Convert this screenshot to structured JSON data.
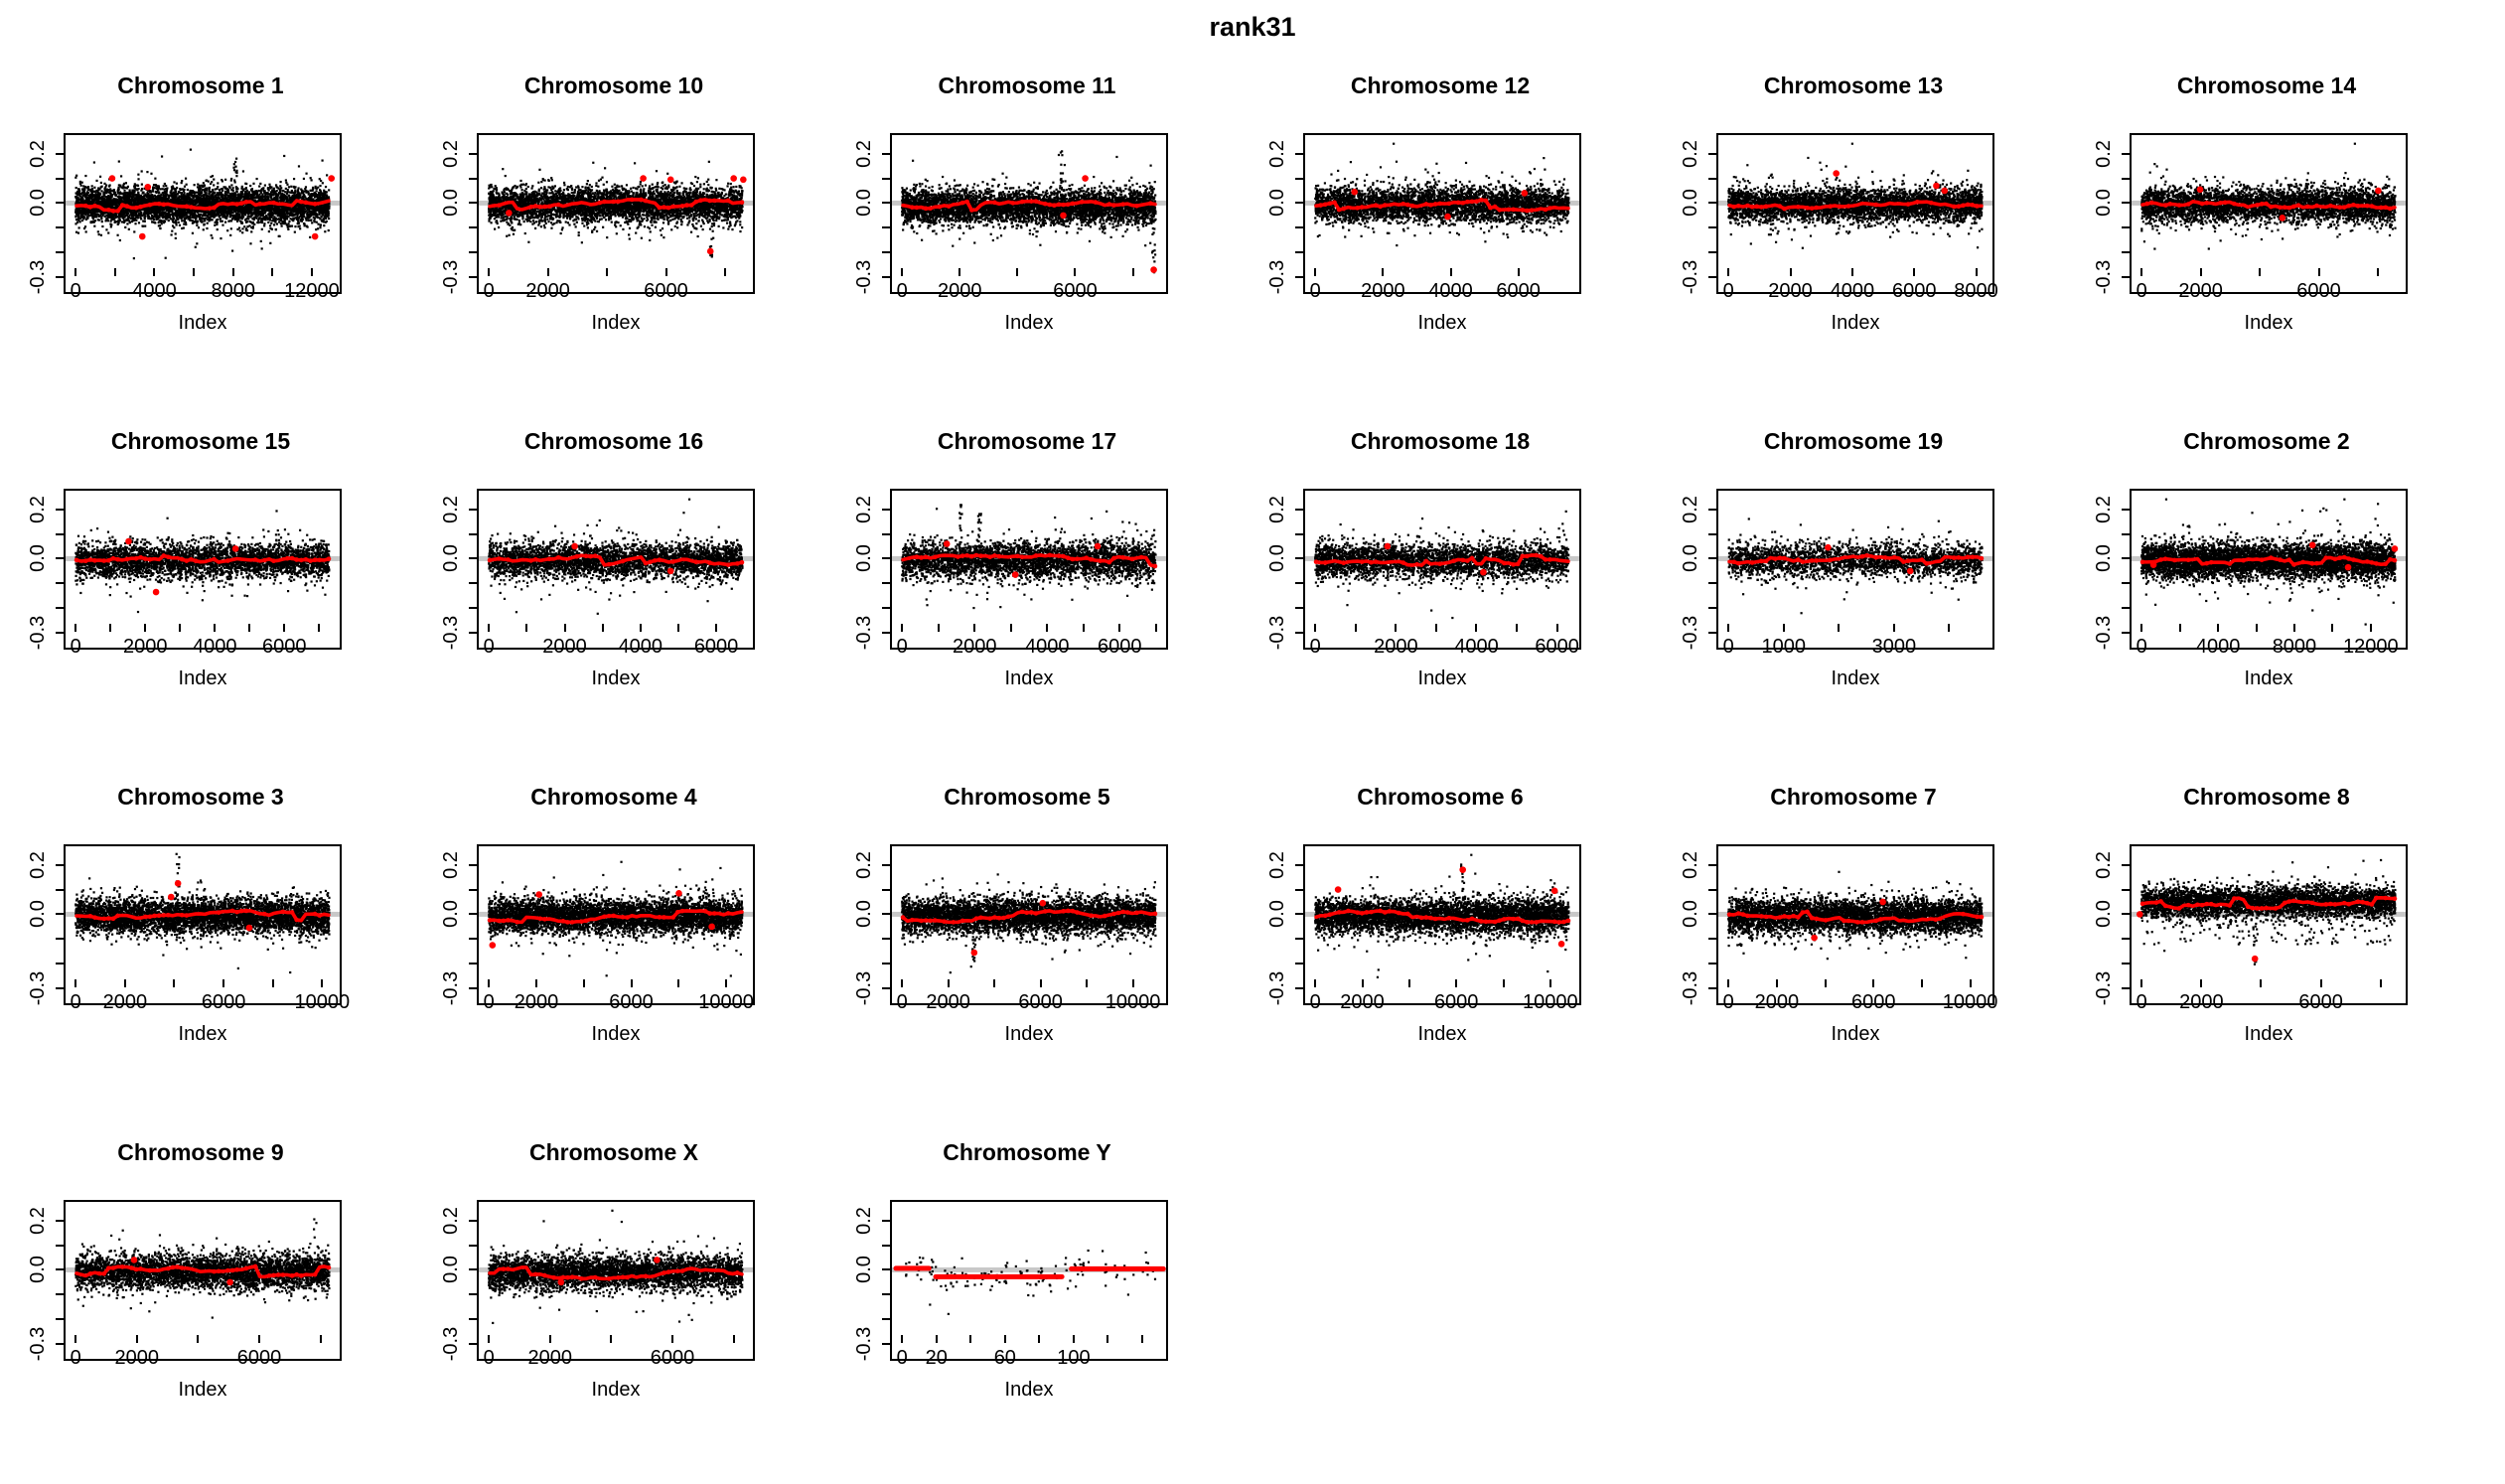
{
  "title": "rank31",
  "colors": {
    "point": "#000000",
    "smooth_line": "#FF0000",
    "zero_line": "#C8C8C8",
    "box": "#000000",
    "background": "#FFFFFF"
  },
  "chart_data": {
    "type": "scatter",
    "layout": {
      "rows": 4,
      "cols": 6,
      "legend": "none",
      "grid": "off"
    },
    "shared": {
      "xlabel": "Index",
      "y_ticks": [
        0.2,
        0.1,
        0.0,
        -0.1,
        -0.2,
        -0.3
      ],
      "y_labeled_ticks": {
        "0.2": "0.2",
        "0": "0.0",
        "-0.3": "-0.3"
      },
      "ylim": [
        -0.36,
        0.275
      ],
      "description": "Per-chromosome log-ratio scatter: dense black points around 0, gray reference line at y=0, thick red segmented smoothing line, sparse red outlier points."
    },
    "panels": [
      {
        "title": "Chromosome 1",
        "x_max": 12900,
        "x_tick_step": 2000,
        "x_labeled_ticks": [
          0,
          4000,
          8000,
          12000
        ],
        "n_points": 5600,
        "band_mean": -0.008,
        "band_sd": 0.034,
        "red_outliers": [
          [
            0.17,
            0.1
          ],
          [
            0.3,
            0.065
          ],
          [
            0.28,
            -0.135
          ],
          [
            0.91,
            -0.135
          ],
          [
            0.97,
            0.1
          ]
        ],
        "spikes": [
          [
            0.62,
            0.2
          ]
        ]
      },
      {
        "title": "Chromosome 10",
        "x_max": 8600,
        "x_tick_step": 2000,
        "x_labeled_ticks": [
          0,
          2000,
          6000
        ],
        "n_points": 4600,
        "band_mean": -0.008,
        "band_sd": 0.034,
        "red_outliers": [
          [
            0.11,
            -0.04
          ],
          [
            0.6,
            0.1
          ],
          [
            0.7,
            0.095
          ],
          [
            0.845,
            -0.195
          ],
          [
            0.93,
            0.1
          ],
          [
            0.965,
            0.095
          ]
        ],
        "spikes": [
          [
            0.85,
            -0.22
          ]
        ]
      },
      {
        "title": "Chromosome 11",
        "x_max": 8800,
        "x_tick_step": 2000,
        "x_labeled_ticks": [
          0,
          2000,
          6000
        ],
        "n_points": 4800,
        "band_mean": -0.015,
        "band_sd": 0.034,
        "red_outliers": [
          [
            0.705,
            0.1
          ],
          [
            0.625,
            -0.05
          ],
          [
            0.955,
            -0.27
          ]
        ],
        "spikes": [
          [
            0.62,
            0.21
          ],
          [
            0.955,
            -0.29
          ]
        ]
      },
      {
        "title": "Chromosome 12",
        "x_max": 7500,
        "x_tick_step": 2000,
        "x_labeled_ticks": [
          0,
          2000,
          4000,
          6000
        ],
        "n_points": 4200,
        "band_mean": -0.008,
        "band_sd": 0.034,
        "red_outliers": [
          [
            0.18,
            0.045
          ],
          [
            0.52,
            -0.055
          ],
          [
            0.8,
            0.04
          ]
        ],
        "spikes": []
      },
      {
        "title": "Chromosome 13",
        "x_max": 8200,
        "x_tick_step": 2000,
        "x_labeled_ticks": [
          0,
          2000,
          4000,
          6000,
          8000
        ],
        "n_points": 4400,
        "band_mean": -0.008,
        "band_sd": 0.034,
        "red_outliers": [
          [
            0.43,
            0.12
          ],
          [
            0.795,
            0.07
          ],
          [
            0.825,
            0.05
          ]
        ],
        "spikes": []
      },
      {
        "title": "Chromosome 14",
        "x_max": 8600,
        "x_tick_step": 2000,
        "x_labeled_ticks": [
          0,
          2000,
          6000
        ],
        "n_points": 4400,
        "band_mean": -0.008,
        "band_sd": 0.034,
        "red_outliers": [
          [
            0.25,
            0.055
          ],
          [
            0.55,
            -0.06
          ],
          [
            0.9,
            0.05
          ]
        ],
        "spikes": []
      },
      {
        "title": "Chromosome 15",
        "x_max": 7300,
        "x_tick_step": 1000,
        "x_labeled_ticks": [
          0,
          2000,
          4000,
          6000
        ],
        "n_points": 3800,
        "band_mean": -0.008,
        "band_sd": 0.034,
        "red_outliers": [
          [
            0.23,
            0.07
          ],
          [
            0.33,
            -0.135
          ],
          [
            0.62,
            0.04
          ]
        ],
        "spikes": []
      },
      {
        "title": "Chromosome 16",
        "x_max": 6700,
        "x_tick_step": 1000,
        "x_labeled_ticks": [
          0,
          2000,
          4000,
          6000
        ],
        "n_points": 3600,
        "band_mean": -0.008,
        "band_sd": 0.034,
        "red_outliers": [
          [
            0.35,
            0.05
          ],
          [
            0.7,
            -0.05
          ]
        ],
        "spikes": []
      },
      {
        "title": "Chromosome 17",
        "x_max": 7000,
        "x_tick_step": 1000,
        "x_labeled_ticks": [
          0,
          2000,
          4000,
          6000
        ],
        "n_points": 3700,
        "band_mean": -0.008,
        "band_sd": 0.036,
        "red_outliers": [
          [
            0.2,
            0.06
          ],
          [
            0.45,
            -0.065
          ],
          [
            0.75,
            0.05
          ]
        ],
        "spikes": [
          [
            0.25,
            0.22
          ],
          [
            0.32,
            0.2
          ]
        ]
      },
      {
        "title": "Chromosome 18",
        "x_max": 6300,
        "x_tick_step": 1000,
        "x_labeled_ticks": [
          0,
          2000,
          4000,
          6000
        ],
        "n_points": 3500,
        "band_mean": -0.008,
        "band_sd": 0.034,
        "red_outliers": [
          [
            0.3,
            0.05
          ],
          [
            0.65,
            -0.055
          ]
        ],
        "spikes": []
      },
      {
        "title": "Chromosome 19",
        "x_max": 4600,
        "x_tick_step": 1000,
        "x_labeled_ticks": [
          0,
          1000,
          3000
        ],
        "n_points": 2600,
        "band_mean": -0.008,
        "band_sd": 0.034,
        "red_outliers": [
          [
            0.4,
            0.045
          ],
          [
            0.7,
            -0.05
          ]
        ],
        "spikes": []
      },
      {
        "title": "Chromosome 2",
        "x_max": 13300,
        "x_tick_step": 2000,
        "x_labeled_ticks": [
          0,
          4000,
          8000,
          12000
        ],
        "n_points": 5800,
        "band_mean": -0.008,
        "band_sd": 0.034,
        "red_outliers": [
          [
            0.66,
            0.055
          ],
          [
            0.79,
            -0.035
          ],
          [
            0.96,
            0.04
          ],
          [
            0.08,
            -0.025
          ]
        ],
        "spikes": []
      },
      {
        "title": "Chromosome 3",
        "x_max": 10300,
        "x_tick_step": 2000,
        "x_labeled_ticks": [
          0,
          2000,
          6000,
          10000
        ],
        "n_points": 5000,
        "band_mean": -0.008,
        "band_sd": 0.034,
        "red_outliers": [
          [
            0.41,
            0.125
          ],
          [
            0.385,
            0.07
          ],
          [
            0.67,
            -0.055
          ]
        ],
        "spikes": [
          [
            0.41,
            0.26
          ]
        ]
      },
      {
        "title": "Chromosome 4",
        "x_max": 10700,
        "x_tick_step": 2000,
        "x_labeled_ticks": [
          0,
          2000,
          6000,
          10000
        ],
        "n_points": 5100,
        "band_mean": -0.008,
        "band_sd": 0.034,
        "red_outliers": [
          [
            0.05,
            -0.125
          ],
          [
            0.22,
            0.08
          ],
          [
            0.73,
            0.085
          ],
          [
            0.85,
            -0.05
          ]
        ],
        "spikes": []
      },
      {
        "title": "Chromosome 5",
        "x_max": 11000,
        "x_tick_step": 2000,
        "x_labeled_ticks": [
          0,
          2000,
          6000,
          10000
        ],
        "n_points": 5100,
        "band_mean": -0.008,
        "band_sd": 0.034,
        "red_outliers": [
          [
            0.3,
            -0.155
          ],
          [
            0.55,
            0.045
          ]
        ],
        "spikes": [
          [
            0.3,
            -0.2
          ]
        ]
      },
      {
        "title": "Chromosome 6",
        "x_max": 10800,
        "x_tick_step": 2000,
        "x_labeled_ticks": [
          0,
          2000,
          6000,
          10000
        ],
        "n_points": 5000,
        "band_mean": -0.008,
        "band_sd": 0.034,
        "red_outliers": [
          [
            0.12,
            0.1
          ],
          [
            0.575,
            0.18
          ],
          [
            0.91,
            0.095
          ],
          [
            0.935,
            -0.12
          ]
        ],
        "spikes": [
          [
            0.575,
            0.22
          ]
        ]
      },
      {
        "title": "Chromosome 7",
        "x_max": 10500,
        "x_tick_step": 2000,
        "x_labeled_ticks": [
          0,
          2000,
          6000,
          10000
        ],
        "n_points": 5000,
        "band_mean": -0.008,
        "band_sd": 0.034,
        "red_outliers": [
          [
            0.35,
            -0.095
          ],
          [
            0.6,
            0.05
          ]
        ],
        "spikes": []
      },
      {
        "title": "Chromosome 8",
        "x_max": 8500,
        "x_tick_step": 2000,
        "x_labeled_ticks": [
          0,
          2000,
          6000
        ],
        "n_points": 4400,
        "band_mean": 0.048,
        "band_sd": 0.03,
        "low_tail": 0.03,
        "red_outliers": [
          [
            0.03,
            0.0
          ],
          [
            0.45,
            -0.18
          ]
        ],
        "spikes": [
          [
            0.45,
            -0.21
          ]
        ]
      },
      {
        "title": "Chromosome 9",
        "x_max": 8300,
        "x_tick_step": 2000,
        "x_labeled_ticks": [
          0,
          2000,
          6000
        ],
        "n_points": 4200,
        "band_mean": -0.008,
        "band_sd": 0.034,
        "red_outliers": [
          [
            0.25,
            0.04
          ],
          [
            0.6,
            -0.05
          ]
        ],
        "spikes": []
      },
      {
        "title": "Chromosome X",
        "x_max": 8300,
        "x_tick_step": 2000,
        "x_labeled_ticks": [
          0,
          2000,
          6000
        ],
        "n_points": 4200,
        "band_mean": -0.012,
        "band_sd": 0.034,
        "red_outliers": [
          [
            0.3,
            -0.05
          ],
          [
            0.65,
            0.04
          ]
        ],
        "spikes": []
      },
      {
        "title": "Chromosome Y",
        "x_max": 148,
        "x_tick_step": 20,
        "x_labeled_ticks": [
          0,
          20,
          60,
          100
        ],
        "n_points": 150,
        "band_mean": -0.01,
        "band_sd": 0.032,
        "line_segments": [
          [
            0.0,
            0.135,
            0.006
          ],
          [
            0.145,
            0.62,
            -0.028
          ],
          [
            0.64,
            0.99,
            0.004
          ]
        ],
        "red_outliers": [],
        "spikes": []
      }
    ]
  }
}
